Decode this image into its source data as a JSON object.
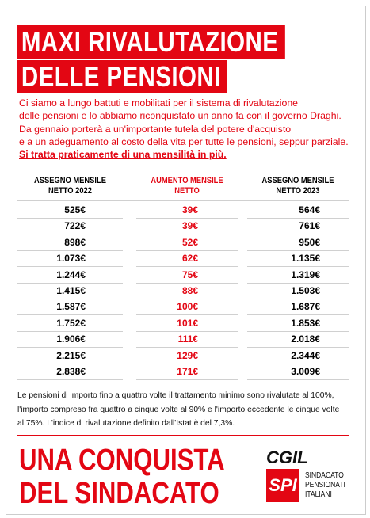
{
  "header": {
    "title_lines": [
      "MAXI RIVALUTAZIONE",
      "DELLE PENSIONI"
    ]
  },
  "intro": {
    "lines": [
      "Ci siamo a lungo battuti e mobilitati per il sistema di rivalutazione",
      "delle pensioni e lo abbiamo riconquistato un anno fa con il governo Draghi.",
      "Da gennaio porterà a un'importante tutela del potere d'acquisto",
      "e a un adeguamento al costo della vita per tutte le pensioni, seppur parziale."
    ],
    "highlight": "Si tratta praticamente di una mensilità in più."
  },
  "table": {
    "headers": [
      [
        "ASSEGNO MENSILE",
        "NETTO 2022"
      ],
      [
        "AUMENTO MENSILE",
        "NETTO"
      ],
      [
        "ASSEGNO MENSILE",
        "NETTO 2023"
      ]
    ],
    "rows": [
      [
        "525€",
        "39€",
        "564€"
      ],
      [
        "722€",
        "39€",
        "761€"
      ],
      [
        "898€",
        "52€",
        "950€"
      ],
      [
        "1.073€",
        "62€",
        "1.135€"
      ],
      [
        "1.244€",
        "75€",
        "1.319€"
      ],
      [
        "1.415€",
        "88€",
        "1.503€"
      ],
      [
        "1.587€",
        "100€",
        "1.687€"
      ],
      [
        "1.752€",
        "101€",
        "1.853€"
      ],
      [
        "1.906€",
        "111€",
        "2.018€"
      ],
      [
        "2.215€",
        "129€",
        "2.344€"
      ],
      [
        "2.838€",
        "171€",
        "3.009€"
      ]
    ]
  },
  "note": {
    "lines": [
      "Le pensioni di importo fino a quattro volte il trattamento minimo sono rivalutate al 100%,",
      "l'importo compreso fra quattro a cinque volte al 90% e l'importo eccedente le cinque volte",
      "al 75%. L'indice di rivalutazione definito dall'Istat è del 7,3%."
    ]
  },
  "footer": {
    "slogan_lines": [
      "UNA CONQUISTA",
      "DEL SINDACATO"
    ],
    "logo": {
      "cgil": "CGIL",
      "spi": "SPI",
      "org_lines": [
        "SINDACATO",
        "PENSIONATI",
        "ITALIANI"
      ]
    }
  }
}
